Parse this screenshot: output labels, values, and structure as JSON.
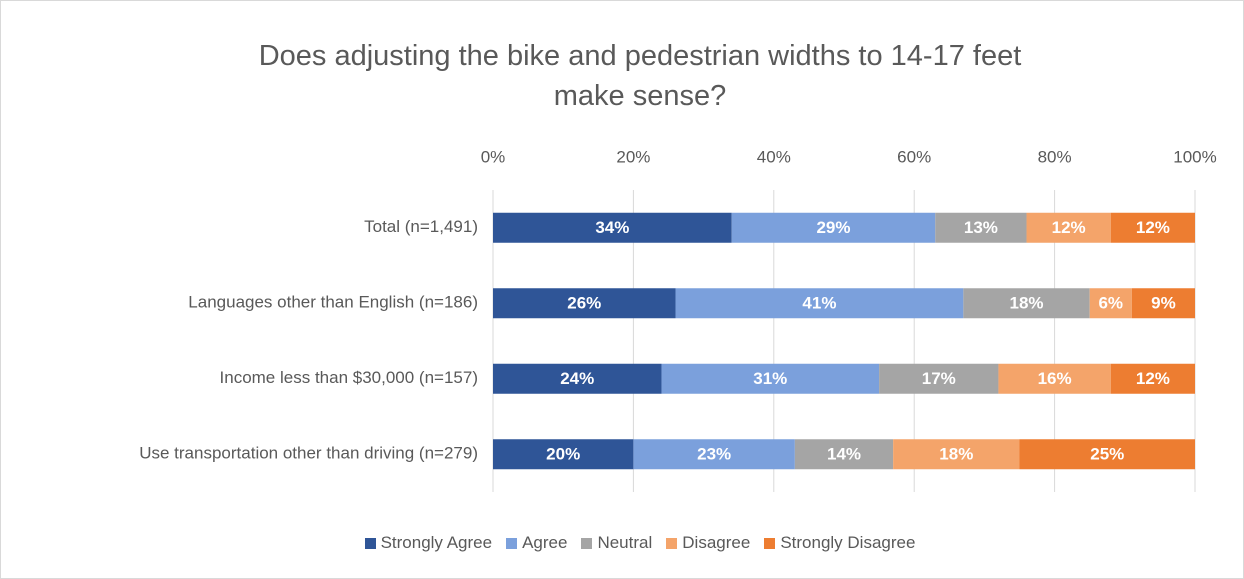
{
  "chart_data": {
    "type": "stacked_barh",
    "title": "Does adjusting the bike and pedestrian widths to 14-17 feet\nmake sense?",
    "categories": [
      "Total (n=1,491)",
      "Languages other than English (n=186)",
      "Income less than $30,000 (n=157)",
      "Use transportation other than driving (n=279)"
    ],
    "series": [
      {
        "name": "Strongly Agree",
        "color": "#2f5597",
        "values": [
          34,
          26,
          24,
          20
        ],
        "value_labels": [
          "34%",
          "26%",
          "24%",
          "20%"
        ]
      },
      {
        "name": "Agree",
        "color": "#7ba0dc",
        "values": [
          29,
          41,
          31,
          23
        ],
        "value_labels": [
          "29%",
          "41%",
          "31%",
          "23%"
        ]
      },
      {
        "name": "Neutral",
        "color": "#a5a5a5",
        "values": [
          13,
          18,
          17,
          14
        ],
        "value_labels": [
          "13%",
          "18%",
          "17%",
          "14%"
        ]
      },
      {
        "name": "Disagree",
        "color": "#f4a46a",
        "values": [
          12,
          6,
          16,
          18
        ],
        "value_labels": [
          "12%",
          "6%",
          "16%",
          "18%"
        ]
      },
      {
        "name": "Strongly Disagree",
        "color": "#ed7d31",
        "values": [
          12,
          9,
          12,
          25
        ],
        "value_labels": [
          "12%",
          "9%",
          "12%",
          "25%"
        ]
      }
    ],
    "xlim": [
      0,
      100
    ],
    "xticks": [
      {
        "value": 0,
        "label": "0%"
      },
      {
        "value": 20,
        "label": "20%"
      },
      {
        "value": 40,
        "label": "40%"
      },
      {
        "value": 60,
        "label": "60%"
      },
      {
        "value": 80,
        "label": "80%"
      },
      {
        "value": 100,
        "label": "100%"
      }
    ],
    "grid": true,
    "legend": "bottom"
  }
}
